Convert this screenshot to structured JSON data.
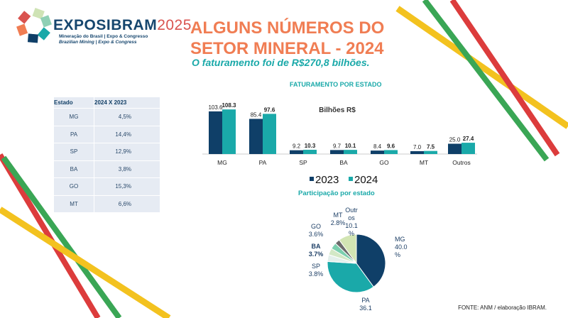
{
  "logo": {
    "name": "EXPOSIBRAM",
    "year": "2025",
    "line1": "Mineração do Brasil | Expo & Congresso",
    "line2": "Brazilian Mining | Expo & Congress"
  },
  "header": {
    "title_line1": "ALGUNS NÚMEROS DO",
    "title_line2": "SETOR MINERAL - 2024",
    "subtitle": "O faturamento foi de R$270,8 bilhões."
  },
  "table": {
    "headers": [
      "Estado",
      "2024 X 2023"
    ],
    "rows": [
      [
        "MG",
        "4,5%"
      ],
      [
        "PA",
        "14,4%"
      ],
      [
        "SP",
        "12,9%"
      ],
      [
        "BA",
        "3,8%"
      ],
      [
        "GO",
        "15,3%"
      ],
      [
        "MT",
        "6,6%"
      ]
    ]
  },
  "chart_data": [
    {
      "type": "bar",
      "title": "FATURAMENTO POR ESTADO",
      "annotation": "Bilhões R$",
      "categories": [
        "MG",
        "PA",
        "SP",
        "BA",
        "GO",
        "MT",
        "Outros"
      ],
      "series": [
        {
          "name": "2023",
          "color": "#0f3f68",
          "values": [
            103.6,
            85.4,
            9.2,
            9.7,
            8.4,
            7.0,
            25.0
          ]
        },
        {
          "name": "2024",
          "color": "#1aa9a9",
          "values": [
            108.3,
            97.6,
            10.3,
            10.1,
            9.6,
            7.5,
            27.4
          ]
        }
      ],
      "value_labels": [
        [
          "103.6",
          "85.4",
          "9.2",
          "9.7",
          "8.4",
          "7.0",
          "25.0"
        ],
        [
          "108.3",
          "97.6",
          "10.3",
          "10.1",
          "9.6",
          "7.5",
          "27.4"
        ]
      ],
      "legend": "bottom"
    },
    {
      "type": "pie",
      "title": "Participação por estado",
      "slices": [
        {
          "label": "MG",
          "value": 40.0,
          "text": [
            "MG",
            "40.0",
            "%"
          ],
          "color": "#0f3f68"
        },
        {
          "label": "PA",
          "value": 36.1,
          "text": [
            "PA",
            "36.1"
          ],
          "color": "#1aa9a9"
        },
        {
          "label": "SP",
          "value": 3.8,
          "text": [
            "SP",
            "3.8%"
          ],
          "color": "#e3efeb"
        },
        {
          "label": "BA",
          "value": 3.7,
          "text": [
            "BA",
            "3.7%"
          ],
          "color": "#d3e8c6"
        },
        {
          "label": "GO",
          "value": 3.6,
          "text": [
            "GO",
            "3.6%"
          ],
          "color": "#7ccfae"
        },
        {
          "label": "MT",
          "value": 2.8,
          "text": [
            "MT",
            "2.8%"
          ],
          "color": "#6b6b6b"
        },
        {
          "label": "Outros",
          "value": 10.1,
          "text": [
            "Outr",
            "os",
            "10.1",
            "%"
          ],
          "color": "#d2e5b3"
        }
      ]
    }
  ],
  "footer": {
    "source": "FONTE: ANM / elaboração IBRAM."
  }
}
